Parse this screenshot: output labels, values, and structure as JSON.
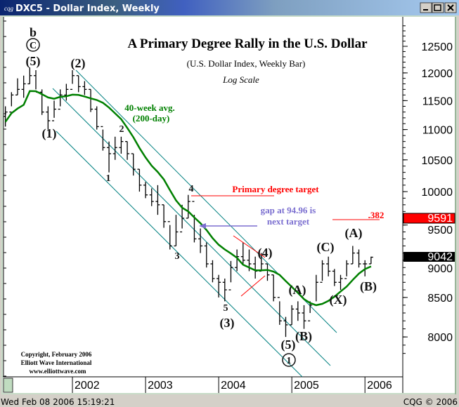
{
  "window": {
    "title": "DXC5 - Dollar Index, Weekly",
    "app_icon": "cqg-logo-icon",
    "controls": [
      "minimize",
      "maximize",
      "close"
    ]
  },
  "status_bar": {
    "timestamp": "Wed Feb 08 2006 15:19:21",
    "copyright": "CQG © 2006"
  },
  "chart_data": {
    "type": "ohlc-bar",
    "title": "A Primary Degree Rally in the U.S. Dollar",
    "subtitle": "(U.S. Dollar Index, Weekly Bar)",
    "scale_note": "Log Scale",
    "y_scale": "log",
    "ylim": [
      7700,
      13000
    ],
    "y_ticks": [
      8000,
      8500,
      9000,
      9500,
      10000,
      10500,
      11000,
      11500,
      12000,
      12500
    ],
    "x_ticks": [
      "2002",
      "2003",
      "2004",
      "2005",
      "2006"
    ],
    "grid": false,
    "price_markers": [
      {
        "label": "9591",
        "color": "#ff0000"
      },
      {
        "label": "9042",
        "color": "#000000"
      }
    ],
    "start": "2001-02",
    "series_note": "approximate monthly high/low/close read from weekly bars",
    "bars": [
      [
        11400,
        11050,
        11300
      ],
      [
        11650,
        11400,
        11600
      ],
      [
        11900,
        11600,
        11700
      ],
      [
        11950,
        11550,
        11800
      ],
      [
        12100,
        11800,
        11950
      ],
      [
        12050,
        11700,
        11650
      ],
      [
        11700,
        11250,
        11300
      ],
      [
        11400,
        11000,
        11150
      ],
      [
        11500,
        11200,
        11350
      ],
      [
        11700,
        11400,
        11600
      ],
      [
        11800,
        11500,
        11700
      ],
      [
        12050,
        11800,
        11950
      ],
      [
        11950,
        11650,
        11750
      ],
      [
        11850,
        11600,
        11700
      ],
      [
        11700,
        11300,
        11350
      ],
      [
        11400,
        11000,
        11050
      ],
      [
        11000,
        10650,
        10700
      ],
      [
        10800,
        10300,
        10600
      ],
      [
        10880,
        10500,
        10700
      ],
      [
        10880,
        10600,
        10800
      ],
      [
        10800,
        10500,
        10600
      ],
      [
        10600,
        10250,
        10350
      ],
      [
        10350,
        10000,
        10100
      ],
      [
        10150,
        9900,
        9950
      ],
      [
        10050,
        9780,
        9850
      ],
      [
        10100,
        9650,
        9800
      ],
      [
        9800,
        9460,
        9550
      ],
      [
        9500,
        9150,
        9200
      ],
      [
        9650,
        9200,
        9400
      ],
      [
        9800,
        9450,
        9600
      ],
      [
        9950,
        9600,
        9850
      ],
      [
        9650,
        9250,
        9300
      ],
      [
        9450,
        9100,
        9200
      ],
      [
        9250,
        8900,
        8950
      ],
      [
        9000,
        8700,
        8750
      ],
      [
        8800,
        8500,
        8700
      ],
      [
        8750,
        8450,
        8600
      ],
      [
        8990,
        8700,
        8900
      ],
      [
        9150,
        8850,
        9050
      ],
      [
        9250,
        8950,
        9000
      ],
      [
        9150,
        8850,
        8950
      ],
      [
        9050,
        8750,
        8850
      ],
      [
        9100,
        8850,
        8950
      ],
      [
        8950,
        8720,
        8800
      ],
      [
        8800,
        8450,
        8500
      ],
      [
        8450,
        8150,
        8200
      ],
      [
        8250,
        8000,
        8150
      ],
      [
        8400,
        8150,
        8350
      ],
      [
        8450,
        8200,
        8300
      ],
      [
        8400,
        8100,
        8200
      ],
      [
        8450,
        8300,
        8400
      ],
      [
        8800,
        8450,
        8700
      ],
      [
        9000,
        8720,
        8950
      ],
      [
        9050,
        8780,
        8850
      ],
      [
        8880,
        8650,
        8700
      ],
      [
        8800,
        8600,
        8750
      ],
      [
        9000,
        8780,
        8950
      ],
      [
        9200,
        8950,
        9100
      ],
      [
        9150,
        8900,
        8950
      ],
      [
        9000,
        8780,
        8950
      ],
      [
        9050,
        8950,
        9042
      ]
    ],
    "moving_average": {
      "label1": "40-week avg.",
      "label2": "(200-day)",
      "color": "#008000"
    },
    "annotations": {
      "b": "b",
      "circ_c": "C",
      "p5": "(5)",
      "p2": "(2)",
      "p1": "(1)",
      "n2": "2",
      "n1": "1",
      "n3": "3",
      "n4": "4",
      "n5": "5",
      "p3": "(3)",
      "p4": "(4)",
      "pA1": "(A)",
      "p5b": "(5)",
      "circ_1": "1",
      "pB1": "(B)",
      "pC": "(C)",
      "pX": "(X)",
      "pA2": "(A)",
      "pB2": "(B)",
      "target": "Primary degree target",
      "gap1": "gap at 94.96 is",
      "gap2": "next target",
      "fib": ".382"
    },
    "colors": {
      "channel": "#008080",
      "target": "#ff0000",
      "gap": "#7b6fd0",
      "ma": "#008000"
    },
    "credits": [
      "Copyright, February 2006",
      "Elliott Wave International",
      "www.elliottwave.com"
    ]
  }
}
